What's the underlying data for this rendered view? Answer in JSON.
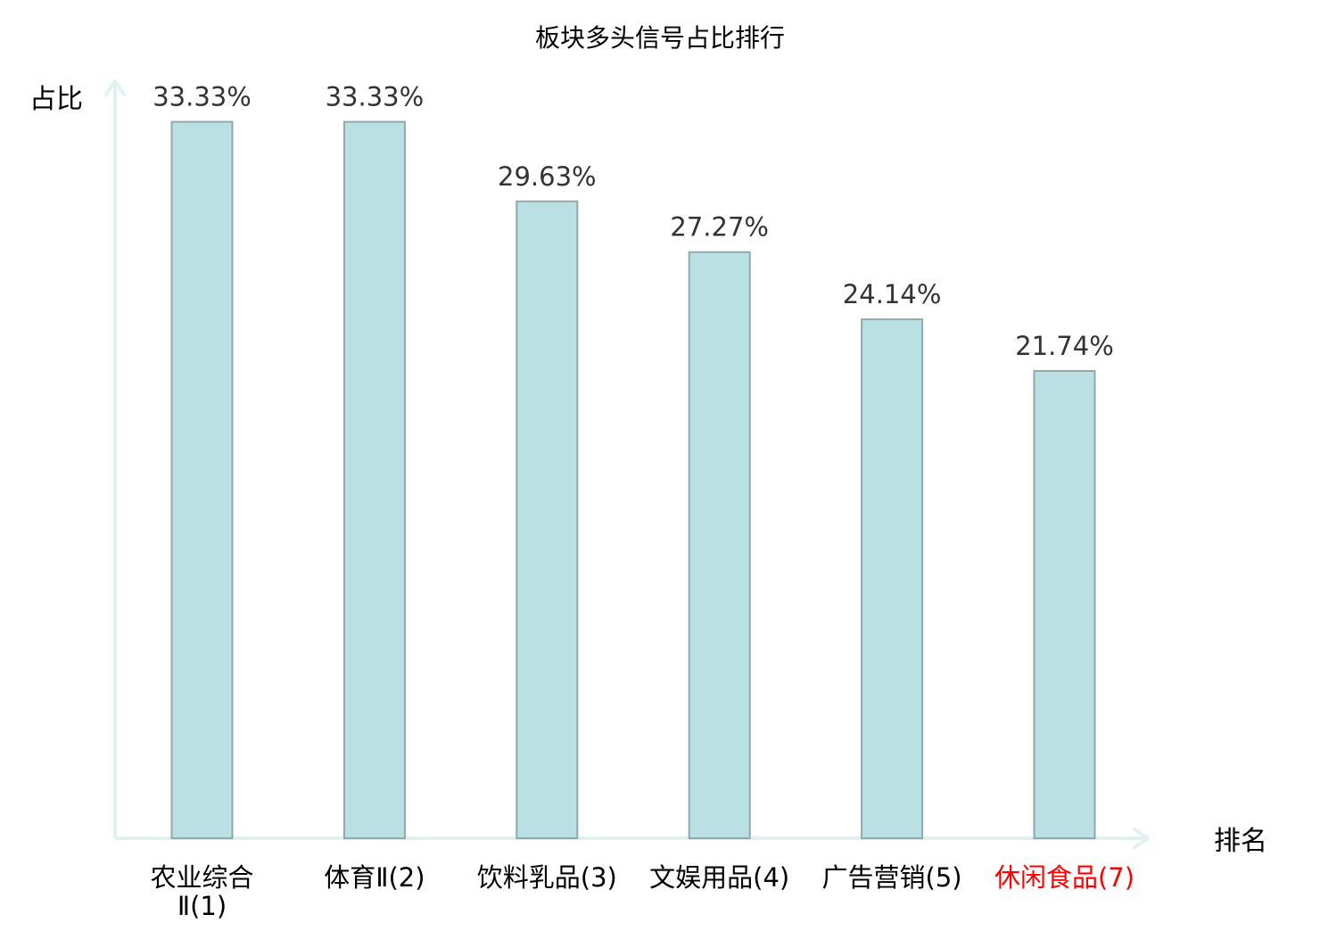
{
  "chart_data": {
    "type": "bar",
    "title": "板块多头信号占比排行",
    "xlabel": "排名",
    "ylabel": "占比",
    "categories": [
      [
        "农业综合",
        "Ⅱ(1)"
      ],
      [
        "体育Ⅱ(2)"
      ],
      [
        "饮料乳品(3)"
      ],
      [
        "文娱用品(4)"
      ],
      [
        "广告营销(5)"
      ],
      [
        "休闲食品(7)"
      ]
    ],
    "values": [
      33.33,
      33.33,
      29.63,
      27.27,
      24.14,
      21.74
    ],
    "value_labels": [
      "33.33%",
      "33.33%",
      "29.63%",
      "27.27%",
      "24.14%",
      "21.74%"
    ],
    "highlight_index": 5,
    "ylim": [
      0,
      34.6
    ],
    "grid": false,
    "colors": {
      "bar_fill": "#bbe0e3",
      "bar_stroke": "#8fa9ab",
      "axis": "#e0f2f0",
      "text": "#333333",
      "axis_title": "#000000",
      "highlight": "#ff0000"
    }
  }
}
